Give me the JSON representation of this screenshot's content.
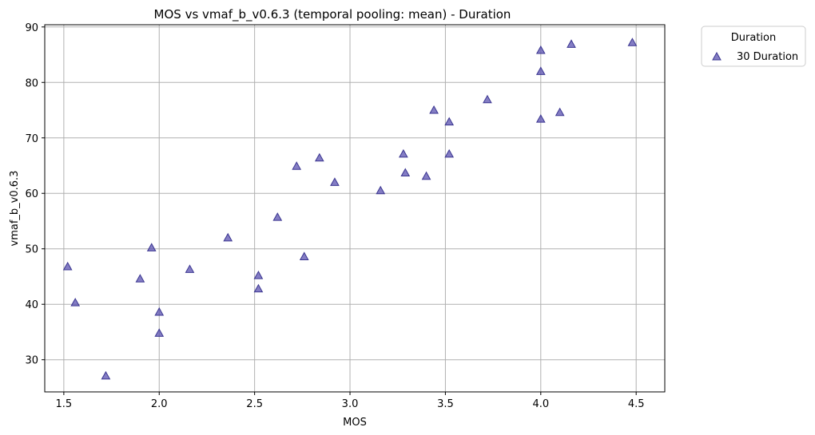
{
  "chart_data": {
    "type": "scatter",
    "title": "MOS vs vmaf_b_v0.6.3 (temporal pooling: mean) - Duration",
    "xlabel": "MOS",
    "ylabel": "vmaf_b_v0.6.3",
    "xlim": [
      1.4,
      4.65
    ],
    "ylim": [
      24.2,
      90.4
    ],
    "xticks": [
      1.5,
      2.0,
      2.5,
      3.0,
      3.5,
      4.0,
      4.5
    ],
    "xtick_labels": [
      "1.5",
      "2.0",
      "2.5",
      "3.0",
      "3.5",
      "4.0",
      "4.5"
    ],
    "yticks": [
      30,
      40,
      50,
      60,
      70,
      80,
      90
    ],
    "ytick_labels": [
      "30",
      "40",
      "50",
      "60",
      "70",
      "80",
      "90"
    ],
    "grid": true,
    "legend": {
      "title": "Duration",
      "placement": "outside-top-right"
    },
    "series": [
      {
        "name": "30 Duration",
        "marker": "triangle",
        "color": "#5b52b0",
        "edge_color": "#3a3590",
        "points": [
          [
            1.52,
            46.8
          ],
          [
            1.56,
            40.3
          ],
          [
            1.72,
            27.1
          ],
          [
            1.9,
            44.6
          ],
          [
            1.96,
            50.2
          ],
          [
            2.0,
            38.6
          ],
          [
            2.0,
            34.8
          ],
          [
            2.16,
            46.3
          ],
          [
            2.36,
            52.0
          ],
          [
            2.52,
            45.2
          ],
          [
            2.52,
            42.8
          ],
          [
            2.62,
            55.7
          ],
          [
            2.72,
            64.9
          ],
          [
            2.76,
            48.6
          ],
          [
            2.84,
            66.4
          ],
          [
            2.92,
            62.0
          ],
          [
            3.16,
            60.5
          ],
          [
            3.28,
            67.1
          ],
          [
            3.29,
            63.7
          ],
          [
            3.4,
            63.1
          ],
          [
            3.44,
            75.0
          ],
          [
            3.52,
            72.9
          ],
          [
            3.52,
            67.1
          ],
          [
            3.72,
            76.9
          ],
          [
            4.0,
            85.8
          ],
          [
            4.0,
            82.0
          ],
          [
            4.0,
            73.4
          ],
          [
            4.1,
            74.6
          ],
          [
            4.16,
            86.9
          ],
          [
            4.48,
            87.2
          ]
        ]
      }
    ]
  }
}
